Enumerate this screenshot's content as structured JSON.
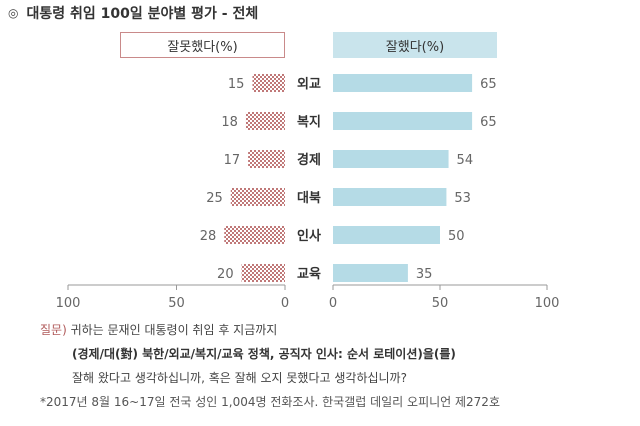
{
  "title": {
    "bullet": "◎",
    "text": "대통령 취임 100일 분야별 평가 - 전체"
  },
  "legend": {
    "negative": "잘못했다(%)",
    "positive": "잘했다(%)"
  },
  "colors": {
    "negative": "#c07878",
    "positive": "#b5dbe6",
    "axis": "#999999"
  },
  "chart_data": {
    "type": "bar",
    "categories": [
      "외교",
      "복지",
      "경제",
      "대북",
      "인사",
      "교육"
    ],
    "series": [
      {
        "name": "잘못했다(%)",
        "values": [
          15,
          18,
          17,
          25,
          28,
          20
        ]
      },
      {
        "name": "잘했다(%)",
        "values": [
          65,
          65,
          54,
          53,
          50,
          35
        ]
      }
    ],
    "left_axis_ticks": [
      "100",
      "50",
      "0"
    ],
    "right_axis_ticks": [
      "0",
      "50",
      "100"
    ],
    "xlim": [
      0,
      100
    ]
  },
  "notes": {
    "question_label": "질문)",
    "question_line1": " 귀하는 문재인 대통령이 취임 후 지금까지",
    "question_topics": "(경제/대(對) 북한/외교/복지/교육 정책, 공직자 인사: 순서 로테이션)을(를)",
    "question_line2": "잘해 왔다고 생각하십니까, 혹은 잘해 오지 못했다고 생각하십니까?",
    "source": "*2017년 8월 16~17일 전국 성인 1,004명 전화조사. 한국갤럽 데일리 오피니언 제272호"
  }
}
